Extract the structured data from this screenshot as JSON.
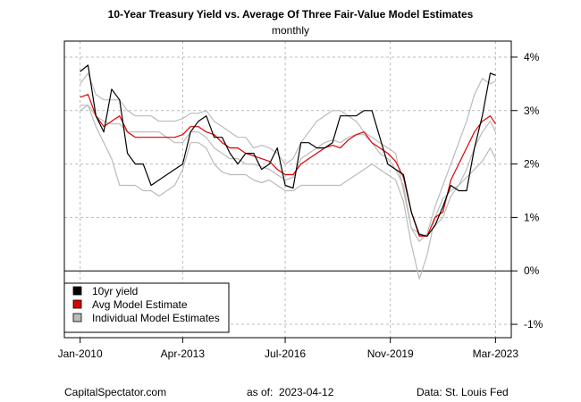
{
  "chart_data": {
    "type": "line",
    "title": "10-Year Treasury Yield vs. Average Of Three Fair-Value Model Estimates",
    "subtitle": "monthly",
    "xlabel": "",
    "ylabel": "",
    "x_start": "Jan-2010",
    "x_end": "Mar-2023",
    "x_ticks": [
      "Jan-2010",
      "Apr-2013",
      "Jul-2016",
      "Nov-2019",
      "Mar-2023"
    ],
    "x_tick_months": [
      0,
      39,
      78,
      118,
      158
    ],
    "y_ticks": [
      "4%",
      "3%",
      "2%",
      "1%",
      "0%",
      "-1%"
    ],
    "y_tick_values": [
      4,
      3,
      2,
      1,
      0,
      -1
    ],
    "ylim": [
      -1.25,
      4.3
    ],
    "xlim": [
      -6,
      164
    ],
    "grid": true,
    "zero_line": true,
    "legend_position": "bottom-left",
    "x_month_index": [
      0,
      3,
      6,
      9,
      12,
      15,
      18,
      21,
      24,
      27,
      30,
      33,
      36,
      39,
      42,
      45,
      48,
      51,
      54,
      57,
      60,
      63,
      66,
      69,
      72,
      75,
      78,
      81,
      84,
      87,
      90,
      93,
      96,
      99,
      102,
      105,
      108,
      111,
      114,
      117,
      120,
      123,
      126,
      129,
      132,
      135,
      138,
      141,
      144,
      147,
      150,
      153,
      156,
      158
    ],
    "series": [
      {
        "name": "10yr yield",
        "color": "#000000",
        "values": [
          3.73,
          3.85,
          2.9,
          2.6,
          3.4,
          3.2,
          2.2,
          2.0,
          2.0,
          1.6,
          1.7,
          1.8,
          1.9,
          2.0,
          2.6,
          2.8,
          2.9,
          2.5,
          2.5,
          2.2,
          2.0,
          2.2,
          2.2,
          1.9,
          2.0,
          2.3,
          1.6,
          1.55,
          2.4,
          2.4,
          2.3,
          2.3,
          2.4,
          2.9,
          2.9,
          2.9,
          3.0,
          3.0,
          2.5,
          2.0,
          1.9,
          1.8,
          1.1,
          0.68,
          0.65,
          0.85,
          1.2,
          1.6,
          1.5,
          1.5,
          2.3,
          2.9,
          3.7,
          3.66
        ]
      },
      {
        "name": "Avg Model Estimate",
        "color": "#dd0000",
        "values": [
          3.25,
          3.3,
          2.9,
          2.7,
          2.8,
          2.9,
          2.6,
          2.5,
          2.5,
          2.5,
          2.5,
          2.5,
          2.5,
          2.55,
          2.7,
          2.7,
          2.6,
          2.55,
          2.4,
          2.3,
          2.3,
          2.2,
          2.15,
          2.1,
          2.05,
          1.9,
          1.8,
          1.8,
          2.0,
          2.1,
          2.2,
          2.3,
          2.35,
          2.3,
          2.45,
          2.55,
          2.6,
          2.4,
          2.3,
          2.2,
          2.05,
          1.75,
          1.1,
          0.65,
          0.65,
          1.0,
          1.1,
          1.7,
          2.0,
          2.3,
          2.6,
          2.8,
          2.9,
          2.75
        ]
      },
      {
        "name": "Individual Model Estimate A",
        "color": "#bbbbbb",
        "values": [
          3.5,
          3.7,
          3.3,
          3.2,
          3.2,
          3.2,
          3.0,
          2.9,
          2.9,
          2.9,
          2.8,
          2.8,
          2.8,
          2.85,
          2.95,
          2.95,
          3.0,
          2.8,
          2.7,
          2.6,
          2.5,
          2.5,
          2.3,
          2.35,
          2.3,
          2.2,
          2.0,
          2.1,
          2.4,
          2.6,
          2.8,
          2.9,
          3.0,
          3.0,
          2.9,
          2.8,
          2.6,
          2.5,
          2.4,
          2.3,
          2.2,
          1.5,
          0.8,
          0.55,
          0.7,
          1.2,
          1.6,
          2.0,
          2.4,
          2.8,
          3.3,
          3.6,
          3.5,
          3.55
        ]
      },
      {
        "name": "Individual Model Estimate B",
        "color": "#bbbbbb",
        "values": [
          3.0,
          3.1,
          2.9,
          2.8,
          2.75,
          2.75,
          2.6,
          2.6,
          2.6,
          2.6,
          2.6,
          2.5,
          2.4,
          2.4,
          2.6,
          2.6,
          2.5,
          2.3,
          2.2,
          2.1,
          2.1,
          2.0,
          2.0,
          1.95,
          1.9,
          1.8,
          1.7,
          1.75,
          2.1,
          2.2,
          2.3,
          2.4,
          2.45,
          2.4,
          2.5,
          2.55,
          2.55,
          2.4,
          2.2,
          2.1,
          1.9,
          1.6,
          0.8,
          0.7,
          0.65,
          0.85,
          1.0,
          1.4,
          1.6,
          1.9,
          2.3,
          2.6,
          2.8,
          2.6
        ]
      },
      {
        "name": "Individual Model Estimate C",
        "color": "#bbbbbb",
        "values": [
          3.1,
          3.1,
          2.7,
          2.4,
          2.1,
          1.6,
          1.6,
          1.6,
          1.5,
          1.5,
          1.4,
          1.5,
          1.6,
          1.9,
          2.4,
          2.4,
          2.3,
          2.0,
          1.85,
          1.8,
          1.8,
          1.8,
          1.7,
          1.65,
          1.7,
          1.6,
          1.5,
          1.5,
          1.6,
          1.6,
          1.6,
          1.6,
          1.6,
          1.6,
          1.7,
          1.8,
          1.9,
          2.0,
          1.9,
          1.8,
          1.7,
          1.3,
          0.5,
          -0.15,
          0.3,
          1.0,
          1.35,
          1.5,
          1.6,
          1.75,
          1.9,
          2.05,
          2.3,
          2.1
        ]
      }
    ]
  },
  "legend": {
    "items": [
      {
        "label": "10yr yield",
        "color": "#000000"
      },
      {
        "label": "Avg Model Estimate",
        "color": "#dd0000"
      },
      {
        "label": "Individual Model Estimates",
        "color": "#bbbbbb"
      }
    ]
  },
  "footer": {
    "source_site": "CapitalSpectator.com",
    "as_of": "as of:  2023-04-12",
    "data_source": "Data: St. Louis Fed"
  }
}
